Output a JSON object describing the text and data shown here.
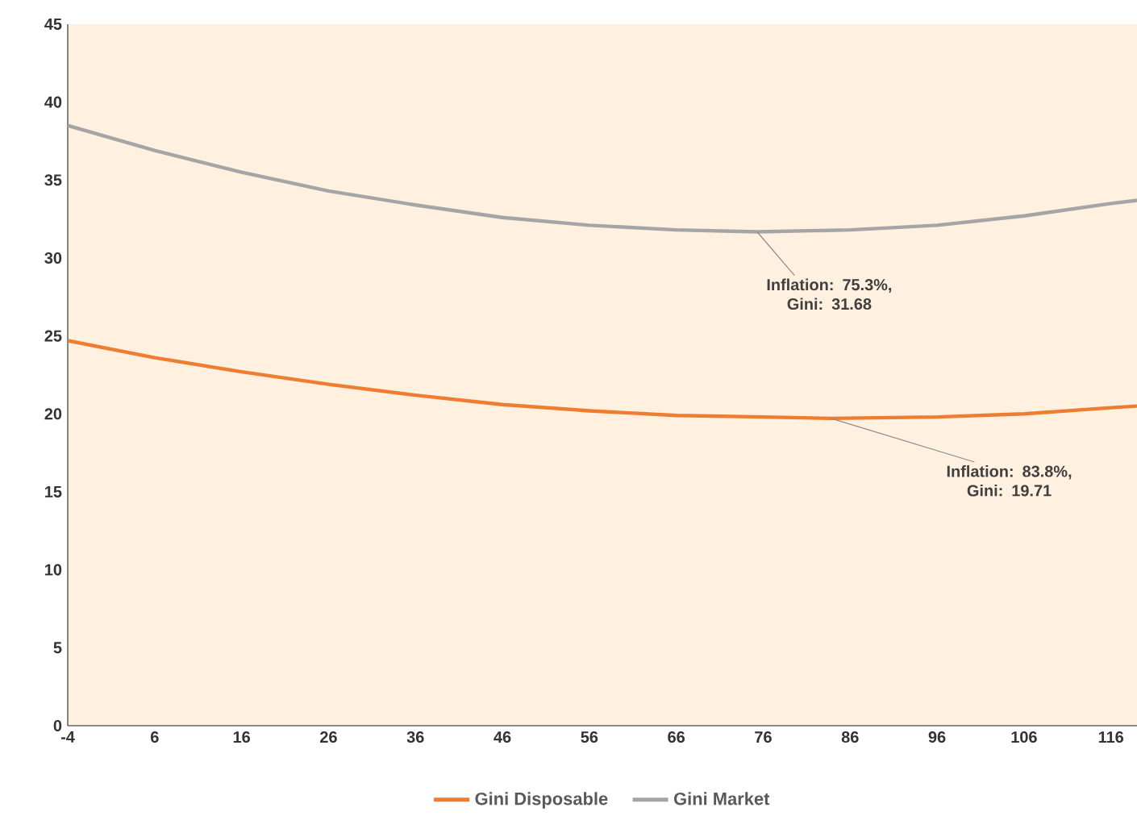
{
  "chart_data": {
    "type": "line",
    "series": [
      {
        "name": "Gini Disposable",
        "color": "#ed7d31",
        "x": [
          -4,
          6,
          16,
          26,
          36,
          46,
          56,
          66,
          76,
          83.8,
          96,
          106,
          116,
          119
        ],
        "values": [
          24.7,
          23.6,
          22.7,
          21.9,
          21.2,
          20.6,
          20.2,
          19.9,
          19.8,
          19.71,
          19.8,
          20.0,
          20.4,
          20.5
        ]
      },
      {
        "name": "Gini Market",
        "color": "#a5a5a5",
        "x": [
          -4,
          6,
          16,
          26,
          36,
          46,
          56,
          66,
          75.3,
          86,
          96,
          106,
          116,
          119
        ],
        "values": [
          38.5,
          36.9,
          35.5,
          34.3,
          33.4,
          32.6,
          32.1,
          31.8,
          31.68,
          31.8,
          32.1,
          32.7,
          33.5,
          33.7
        ]
      }
    ],
    "xlim": [
      -4,
      119
    ],
    "xticks": [
      -4,
      6,
      16,
      26,
      36,
      46,
      56,
      66,
      76,
      86,
      96,
      106,
      116
    ],
    "ylim": [
      0,
      45
    ],
    "yticks": [
      0,
      5,
      10,
      15,
      20,
      25,
      30,
      35,
      40,
      45
    ],
    "grid": false,
    "legend": "bottom",
    "marker": "none",
    "line_style": "solid",
    "annotations": [
      {
        "text": "Inflation: 75.3%, Gini: 31.68",
        "x": 75.3,
        "y": 31.68
      },
      {
        "text": "Inflation: 83.8%, Gini: 19.71",
        "x": 83.8,
        "y": 19.71
      }
    ]
  }
}
